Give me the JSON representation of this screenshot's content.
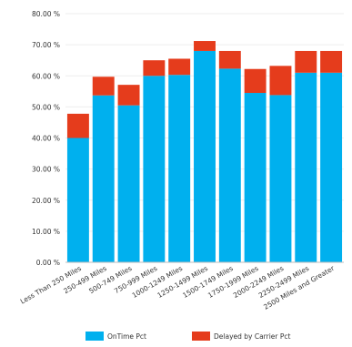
{
  "chart_data": {
    "type": "bar",
    "stacked": true,
    "categories": [
      "Less Than 250 Miles",
      "250-499 Miles",
      "500-749 Miles",
      "750-999 Miles",
      "1000-1249 Miles",
      "1250-1499 Miles",
      "1500-1749 Miles",
      "1750-1999 Miles",
      "2000-2249 Miles",
      "2250-2499 Miles",
      "2500 Miles and Greater"
    ],
    "series": [
      {
        "name": "OnTime Pct",
        "color": "#00b0ee",
        "values": [
          40.0,
          53.7,
          50.5,
          60.0,
          60.3,
          68.0,
          62.3,
          54.5,
          53.8,
          61.0,
          61.0
        ]
      },
      {
        "name": "Delayed by Carrier Pct",
        "color": "#e53c1c",
        "values": [
          7.8,
          6.0,
          6.6,
          5.0,
          5.2,
          3.2,
          5.7,
          7.7,
          9.4,
          7.0,
          7.0
        ]
      }
    ],
    "ylim": [
      0,
      80
    ],
    "yticks": [
      "0.00 %",
      "10.00 %",
      "20.00 %",
      "30.00 %",
      "40.00 %",
      "50.00 %",
      "60.00 %",
      "70.00 %",
      "80.00 %"
    ],
    "grid": true,
    "legend_position": "bottom"
  }
}
